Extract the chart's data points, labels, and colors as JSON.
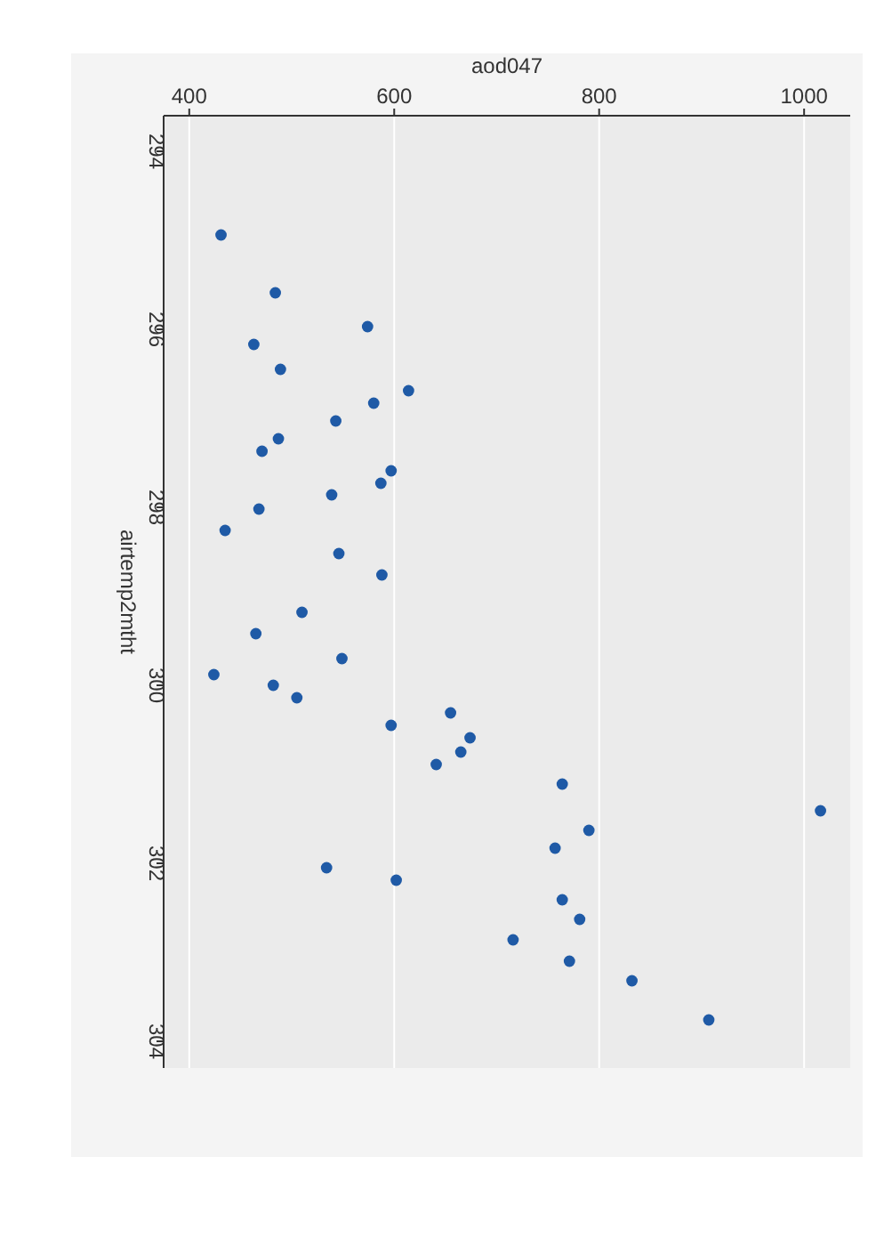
{
  "chart_data": {
    "type": "scatter",
    "xlabel": "aod047",
    "ylabel": "airtemp2mtht",
    "xlim": [
      375,
      1045
    ],
    "xticks": [
      400,
      600,
      800,
      1000
    ],
    "ylim": [
      304.3,
      293.6
    ],
    "yticks": [
      294,
      296,
      298,
      300,
      302,
      304
    ],
    "grid": "x",
    "marker": "circle",
    "series": [
      {
        "color": "#1f5aa6",
        "x": [
          431,
          484,
          574,
          463,
          489,
          614,
          580,
          543,
          487,
          471,
          597,
          587,
          539,
          468,
          435,
          546,
          588,
          510,
          465,
          549,
          424,
          482,
          505,
          597,
          655,
          674,
          665,
          641,
          764,
          1016,
          790,
          757,
          534,
          602,
          764,
          781,
          716,
          771,
          832,
          907
        ],
        "values": [
          294.94,
          295.59,
          295.97,
          296.17,
          296.45,
          296.69,
          296.83,
          297.03,
          297.23,
          297.37,
          297.59,
          297.73,
          297.86,
          298.02,
          298.26,
          298.52,
          298.76,
          299.18,
          299.42,
          299.7,
          299.88,
          300.0,
          300.14,
          300.45,
          300.31,
          300.59,
          300.75,
          300.89,
          301.11,
          301.41,
          301.63,
          301.83,
          302.05,
          302.19,
          302.41,
          302.63,
          302.86,
          303.1,
          303.32,
          303.76
        ]
      }
    ]
  }
}
